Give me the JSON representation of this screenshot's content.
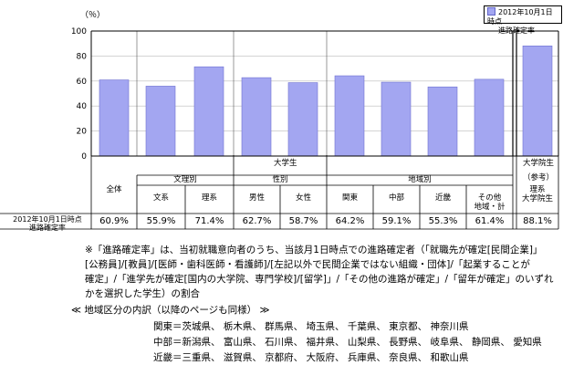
{
  "legend": {
    "line1": "2012年10月1日時点",
    "line2": "進路確定率"
  },
  "chart_data": {
    "type": "bar",
    "y_unit": "（％）",
    "ylim": [
      0,
      100
    ],
    "yticks": [
      0,
      20,
      40,
      60,
      80,
      100
    ],
    "categories": [
      "全体",
      "文系",
      "理系",
      "男性",
      "女性",
      "関東",
      "中部",
      "近畿",
      "その他地域・計",
      "理系大学院生"
    ],
    "values": [
      60.9,
      55.9,
      71.4,
      62.7,
      58.7,
      64.2,
      59.1,
      55.3,
      61.4,
      88.1
    ],
    "value_labels": [
      "60.9%",
      "55.9%",
      "71.4%",
      "62.7%",
      "58.7%",
      "64.2%",
      "59.1%",
      "55.3%",
      "61.4%",
      "88.1%"
    ],
    "series": [
      {
        "name": "進路確定率",
        "values": [
          60.9,
          55.9,
          71.4,
          62.7,
          58.7,
          64.2,
          59.1,
          55.3,
          61.4,
          88.1
        ]
      }
    ]
  },
  "table": {
    "group_daigakusei": "大学生",
    "group_bunri": "文理別",
    "group_seibetsu": "性別",
    "group_chiiki": "地域別",
    "group_inseisei": "大学院生",
    "sankou": "（参考）",
    "row_label_1": "2012年10月1日時点",
    "row_label_2": "進路確定率",
    "headers": [
      "全体",
      "文系",
      "理系",
      "男性",
      "女性",
      "関東",
      "中部",
      "近畿",
      "その他",
      "理系"
    ],
    "headers2": [
      "",
      "",
      "",
      "",
      "",
      "",
      "",
      "",
      "地域・計",
      "大学院生"
    ]
  },
  "notes": {
    "line1": "※「進路確定率」は、当初就職意向者のうち、当該月1日時点での進路確定者（「就職先が確定[民間企業]」",
    "line2": "[公務員]/[教員]/[医師・歯科医師・看護師]/[左記以外で民間企業ではない組織・団体]/「起業することが",
    "line3": "確定」/「進学先が確定[国内の大学院、専門学校]/[留学]」/「その他の進路が確定」/「留年が確定」のいずれ",
    "line4": "かを選択した学生）の割合"
  },
  "regions": {
    "heading": "≪ 地域区分の内訳（以降のページも同様） ≫",
    "kanto": "関東＝茨城県、 栃木県、 群馬県、 埼玉県、 千葉県、 東京都、 神奈川県",
    "chubu": "中部＝新潟県、 富山県、 石川県、 福井県、 山梨県、 長野県、 岐阜県、 静岡県、 愛知県",
    "kinki": "近畿＝三重県、 滋賀県、 京都府、 大阪府、 兵庫県、 奈良県、 和歌山県"
  }
}
